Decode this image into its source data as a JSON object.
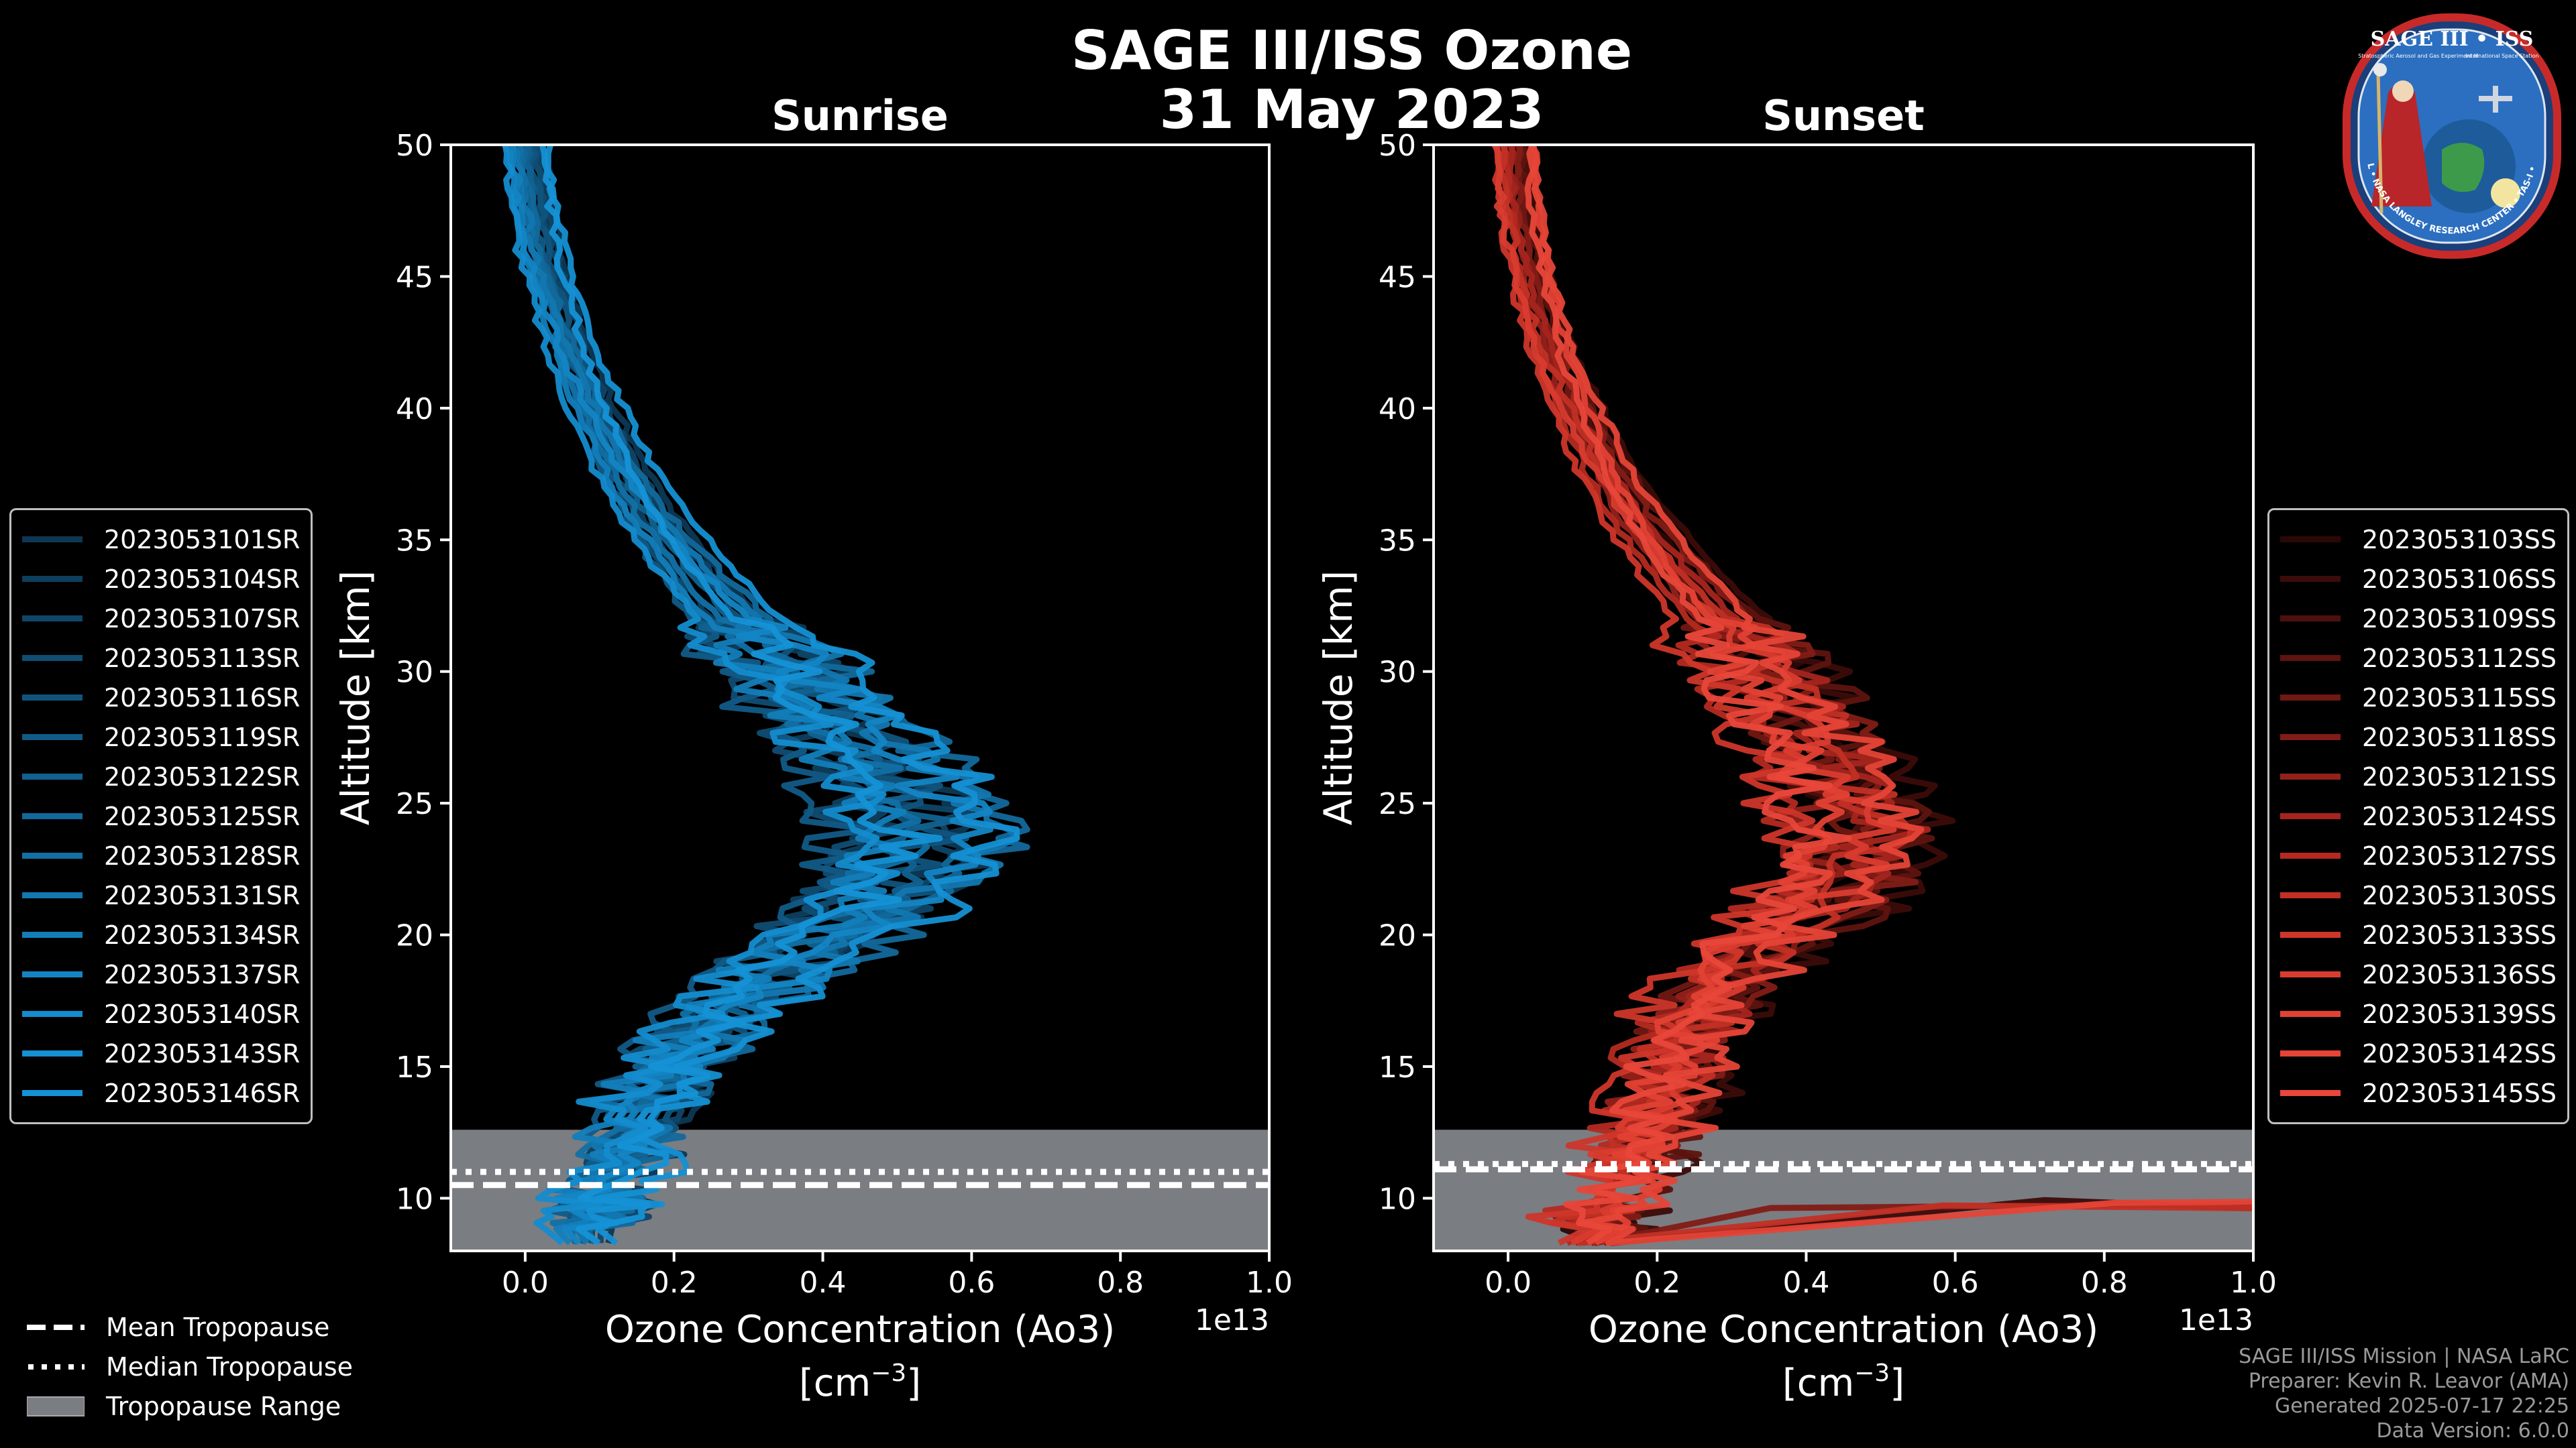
{
  "title": "SAGE III/ISS Ozone",
  "date": "31 May 2023",
  "colors": {
    "background": "#000000",
    "sunrise_base": "#1592d6",
    "sunset_base": "#e8473a",
    "tropo_fill": "#7a7d82"
  },
  "chart_data": [
    {
      "type": "line",
      "title": "Sunrise",
      "xlabel": "Ozone Concentration (Ao3)",
      "xunit": "[cm−3]",
      "xlabel_unit": "[cm",
      "xunit_exp": "−3",
      "xunit_close": "]",
      "x_offset_label": "1e13",
      "ylabel": "Altitude [km]",
      "xlim": [
        -0.1,
        1.0
      ],
      "ylim": [
        8,
        50
      ],
      "xticks": [
        0.0,
        0.2,
        0.4,
        0.6,
        0.8,
        1.0
      ],
      "xtick_labels": [
        "0.0",
        "0.2",
        "0.4",
        "0.6",
        "0.8",
        "1.0"
      ],
      "yticks": [
        10,
        15,
        20,
        25,
        30,
        35,
        40,
        45,
        50
      ],
      "ytick_labels": [
        "10",
        "15",
        "20",
        "25",
        "30",
        "35",
        "40",
        "45",
        "50"
      ],
      "tropopause": {
        "range": [
          8,
          12.6
        ],
        "mean": 10.5,
        "median": 11.0
      },
      "series_count": 15,
      "base_profile": [
        [
          0.0,
          50
        ],
        [
          0.01,
          48
        ],
        [
          0.02,
          46
        ],
        [
          0.04,
          44
        ],
        [
          0.06,
          42
        ],
        [
          0.09,
          40
        ],
        [
          0.12,
          38
        ],
        [
          0.16,
          36
        ],
        [
          0.21,
          34
        ],
        [
          0.27,
          32
        ],
        [
          0.34,
          30
        ],
        [
          0.41,
          28
        ],
        [
          0.47,
          26
        ],
        [
          0.52,
          24
        ],
        [
          0.49,
          22
        ],
        [
          0.4,
          20
        ],
        [
          0.3,
          18
        ],
        [
          0.22,
          16
        ],
        [
          0.16,
          14
        ],
        [
          0.13,
          12
        ],
        [
          0.1,
          10
        ],
        [
          0.08,
          8.6
        ]
      ],
      "series": [
        {
          "name": "2023053101SR",
          "color": "#0d3854"
        },
        {
          "name": "2023053104SR",
          "color": "#0e3f5e"
        },
        {
          "name": "2023053107SR",
          "color": "#0f4668"
        },
        {
          "name": "2023053113SR",
          "color": "#104d73"
        },
        {
          "name": "2023053116SR",
          "color": "#10547d"
        },
        {
          "name": "2023053119SR",
          "color": "#115b87"
        },
        {
          "name": "2023053122SR",
          "color": "#116291"
        },
        {
          "name": "2023053125SR",
          "color": "#12699b"
        },
        {
          "name": "2023053128SR",
          "color": "#1270a5"
        },
        {
          "name": "2023053131SR",
          "color": "#1377b0"
        },
        {
          "name": "2023053134SR",
          "color": "#137eba"
        },
        {
          "name": "2023053137SR",
          "color": "#1485c4"
        },
        {
          "name": "2023053140SR",
          "color": "#148ccd"
        },
        {
          "name": "2023053143SR",
          "color": "#1590d3"
        },
        {
          "name": "2023053146SR",
          "color": "#1592d6"
        }
      ]
    },
    {
      "type": "line",
      "title": "Sunset",
      "xlabel": "Ozone Concentration (Ao3)",
      "xunit": "[cm−3]",
      "xlabel_unit": "[cm",
      "xunit_exp": "−3",
      "xunit_close": "]",
      "x_offset_label": "1e13",
      "ylabel": "Altitude [km]",
      "xlim": [
        -0.1,
        1.0
      ],
      "ylim": [
        8,
        50
      ],
      "xticks": [
        0.0,
        0.2,
        0.4,
        0.6,
        0.8,
        1.0
      ],
      "xtick_labels": [
        "0.0",
        "0.2",
        "0.4",
        "0.6",
        "0.8",
        "1.0"
      ],
      "yticks": [
        10,
        15,
        20,
        25,
        30,
        35,
        40,
        45,
        50
      ],
      "ytick_labels": [
        "10",
        "15",
        "20",
        "25",
        "30",
        "35",
        "40",
        "45",
        "50"
      ],
      "tropopause": {
        "range": [
          8,
          12.6
        ],
        "mean": 11.1,
        "median": 11.3
      },
      "series_count": 15,
      "base_profile": [
        [
          0.01,
          50
        ],
        [
          0.015,
          48
        ],
        [
          0.025,
          46
        ],
        [
          0.04,
          44
        ],
        [
          0.06,
          42
        ],
        [
          0.09,
          40
        ],
        [
          0.12,
          38
        ],
        [
          0.16,
          36
        ],
        [
          0.21,
          34
        ],
        [
          0.27,
          32
        ],
        [
          0.32,
          30
        ],
        [
          0.37,
          28
        ],
        [
          0.41,
          26
        ],
        [
          0.44,
          24
        ],
        [
          0.42,
          22
        ],
        [
          0.34,
          20
        ],
        [
          0.26,
          18
        ],
        [
          0.22,
          16
        ],
        [
          0.2,
          14
        ],
        [
          0.17,
          12
        ],
        [
          0.13,
          10
        ],
        [
          0.1,
          8.6
        ]
      ],
      "series": [
        {
          "name": "2023053103SS",
          "color": "#2a0806"
        },
        {
          "name": "2023053106SS",
          "color": "#3b0c09"
        },
        {
          "name": "2023053109SS",
          "color": "#4d100c"
        },
        {
          "name": "2023053112SS",
          "color": "#5e140f"
        },
        {
          "name": "2023053115SS",
          "color": "#701813"
        },
        {
          "name": "2023053118SS",
          "color": "#821c16"
        },
        {
          "name": "2023053121SS",
          "color": "#93211a"
        },
        {
          "name": "2023053124SS",
          "color": "#a5251d"
        },
        {
          "name": "2023053127SS",
          "color": "#b42a21"
        },
        {
          "name": "2023053130SS",
          "color": "#c23025"
        },
        {
          "name": "2023053133SS",
          "color": "#cf362a"
        },
        {
          "name": "2023053136SS",
          "color": "#d93c2f"
        },
        {
          "name": "2023053139SS",
          "color": "#e14134"
        },
        {
          "name": "2023053142SS",
          "color": "#e54437"
        },
        {
          "name": "2023053145SS",
          "color": "#e8473a"
        }
      ]
    }
  ],
  "tropo_legend": [
    {
      "label": "Mean Tropopause",
      "style": "dashed"
    },
    {
      "label": "Median Tropopause",
      "style": "dotted"
    },
    {
      "label": "Tropopause Range",
      "style": "fill"
    }
  ],
  "credits": [
    "SAGE III/ISS Mission | NASA LaRC",
    "Preparer: Kevin R. Leavor (AMA)",
    "Generated 2025-07-17 22:25",
    "Data Version: 6.0.0"
  ],
  "logo": {
    "title": "SAGE III • ISS",
    "subtitle": "Stratospheric Aerosol and Gas Experiment III",
    "iss_text": "International Space Station",
    "ring_text": "BALL • NASA LANGLEY RESEARCH CENTER • TAS-I • ESA"
  }
}
